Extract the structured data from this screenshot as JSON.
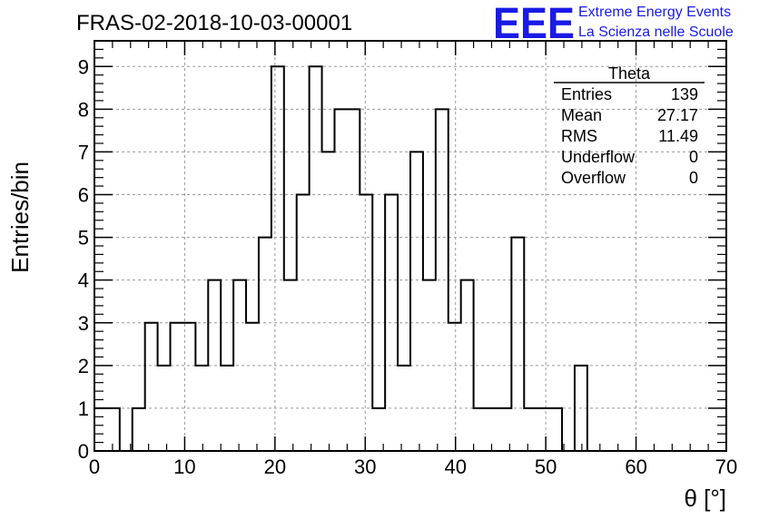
{
  "chart_data": {
    "type": "bar",
    "title": "FRAS-02-2018-10-03-00001",
    "xlabel": "θ [°]",
    "ylabel": "Entries/bin",
    "xlim": [
      0,
      70
    ],
    "ylim": [
      0,
      9.6
    ],
    "grid": true,
    "bin_width": 1.4,
    "bin_edges_start": 0,
    "x_ticks": [
      "0",
      "10",
      "20",
      "30",
      "40",
      "50",
      "60",
      "70"
    ],
    "y_ticks": [
      "0",
      "1",
      "2",
      "3",
      "4",
      "5",
      "6",
      "7",
      "8",
      "9"
    ],
    "values": [
      1,
      1,
      0,
      1,
      3,
      2,
      3,
      3,
      2,
      4,
      2,
      4,
      3,
      5,
      9,
      4,
      6,
      9,
      7,
      8,
      8,
      6,
      1,
      6,
      2,
      7,
      4,
      8,
      3,
      4,
      1,
      1,
      1,
      5,
      1,
      1,
      1,
      0,
      2,
      0,
      0,
      0,
      0,
      0,
      0,
      0,
      0,
      0,
      0,
      0
    ],
    "stats": {
      "name": "Theta",
      "rows": [
        {
          "label": "Entries",
          "value": "139"
        },
        {
          "label": "Mean",
          "value": "27.17"
        },
        {
          "label": "RMS",
          "value": "11.49"
        },
        {
          "label": "Underflow",
          "value": "0"
        },
        {
          "label": "Overflow",
          "value": "0"
        }
      ]
    },
    "logo": {
      "mark": "EEE",
      "line1": "Extreme Energy Events",
      "line2": "La Scienza nelle Scuole",
      "color": "#1a1ae6"
    }
  }
}
